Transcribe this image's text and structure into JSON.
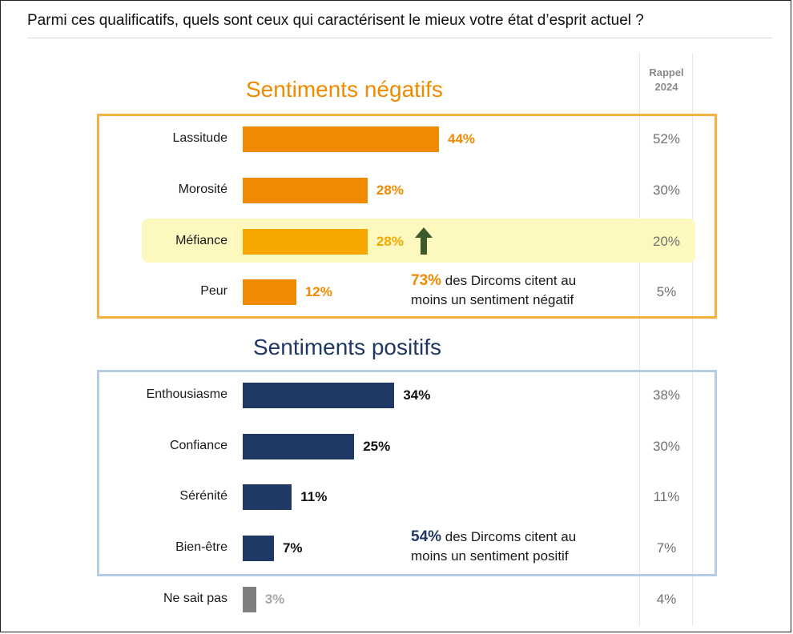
{
  "question": "Parmi ces qualificatifs, quels sont ceux qui caractérisent le mieux votre état d’esprit actuel ?",
  "recall_header_line1": "Rappel",
  "recall_header_line2": "2024",
  "colors": {
    "orange": "#f08a00",
    "orange_light": "#f5a700",
    "navy": "#1f3864",
    "grey": "#7f7f7f",
    "highlight": "#fdf8be"
  },
  "chart_data": {
    "type": "bar",
    "orientation": "horizontal",
    "title": "Parmi ces qualificatifs, quels sont ceux qui caractérisent le mieux votre état d’esprit actuel ?",
    "xlabel": "",
    "ylabel": "",
    "xlim": [
      0,
      44
    ],
    "unit": "%",
    "groups": [
      {
        "name": "Sentiments négatifs",
        "categories": [
          "Lassitude",
          "Morosité",
          "Méfiance",
          "Peur"
        ],
        "values": [
          44,
          28,
          28,
          12
        ],
        "labels": [
          "44%",
          "28%",
          "28%",
          "12%"
        ],
        "recall_2024": [
          "52%",
          "30%",
          "20%",
          "5%"
        ],
        "highlighted": "Méfiance",
        "annotation": {
          "value": "73%",
          "line1": " des Dircoms citent au",
          "line2": "moins un sentiment négatif"
        }
      },
      {
        "name": "Sentiments positifs",
        "categories": [
          "Enthousiasme",
          "Confiance",
          "Sérénité",
          "Bien-être"
        ],
        "values": [
          34,
          25,
          11,
          7
        ],
        "labels": [
          "34%",
          "25%",
          "11%",
          "7%"
        ],
        "recall_2024": [
          "38%",
          "30%",
          "11%",
          "7%"
        ],
        "annotation": {
          "value": "54%",
          "line1": " des Dircoms citent au",
          "line2": "moins un sentiment positif"
        }
      },
      {
        "name": "",
        "categories": [
          "Ne sait pas"
        ],
        "values": [
          3
        ],
        "labels": [
          "3%"
        ],
        "recall_2024": [
          "4%"
        ]
      }
    ]
  }
}
